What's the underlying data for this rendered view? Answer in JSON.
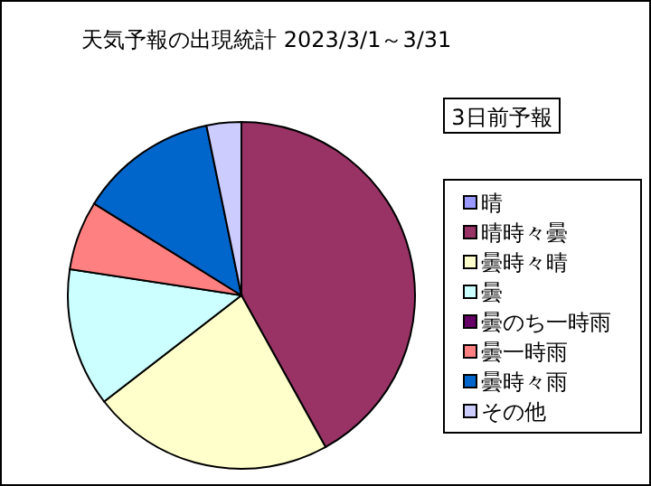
{
  "chart_data": {
    "type": "pie",
    "title": "天気予報の出現統計 2023/3/1～3/31",
    "subtitle": "3日前予報",
    "categories": [
      "晴",
      "晴時々曇",
      "曇時々晴",
      "曇",
      "曇のち一時雨",
      "曇一時雨",
      "曇時々雨",
      "その他"
    ],
    "values": [
      0,
      41.94,
      22.58,
      12.9,
      0,
      6.45,
      12.9,
      3.23
    ],
    "colors": [
      "#9999ff",
      "#993366",
      "#ffffcc",
      "#ccffff",
      "#660066",
      "#ff8080",
      "#0066cc",
      "#ccccff"
    ],
    "legend": "right"
  }
}
